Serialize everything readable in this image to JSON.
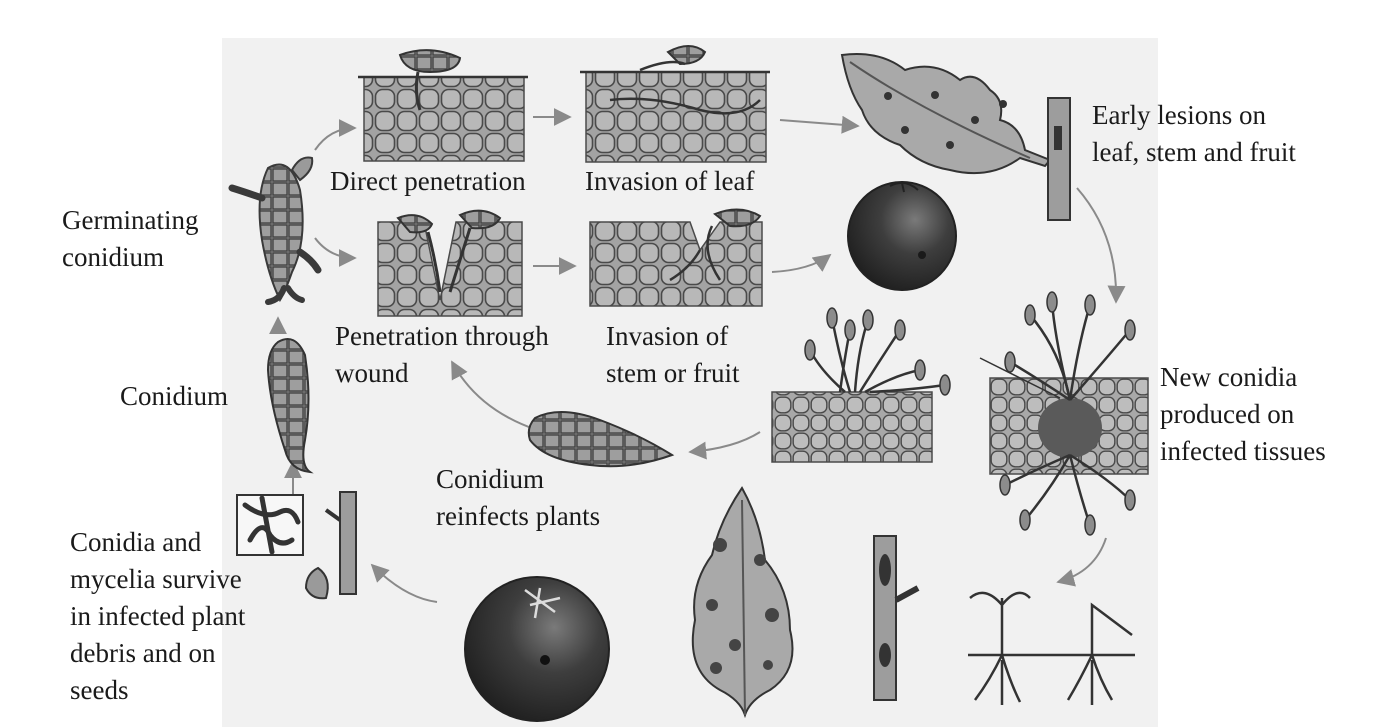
{
  "labels": {
    "germinating": "Germinating\nconidium",
    "direct": "Direct penetration",
    "invasion_leaf": "Invasion of leaf",
    "early": "Early lesions on\nleaf, stem and fruit",
    "penetration_wound": "Penetration through\nwound",
    "invasion_stem": "Invasion of\nstem or fruit",
    "conidium": "Conidium",
    "new_conidia": "New conidia\nproduced on\ninfected tissues",
    "reinfects": "Conidium\nreinfects plants",
    "survive": "Conidia and\nmycelia survive\nin infected plant\ndebris and on\nseeds"
  },
  "colors": {
    "text": "#1a1a1a",
    "panel": "#f1f1f1",
    "cell_fill": "#9a9a9a",
    "cell_stroke": "#4a4a4a",
    "arrow": "#8a8a8a",
    "fruit": "#3d3d3d",
    "leaf": "#a9a9a9"
  }
}
